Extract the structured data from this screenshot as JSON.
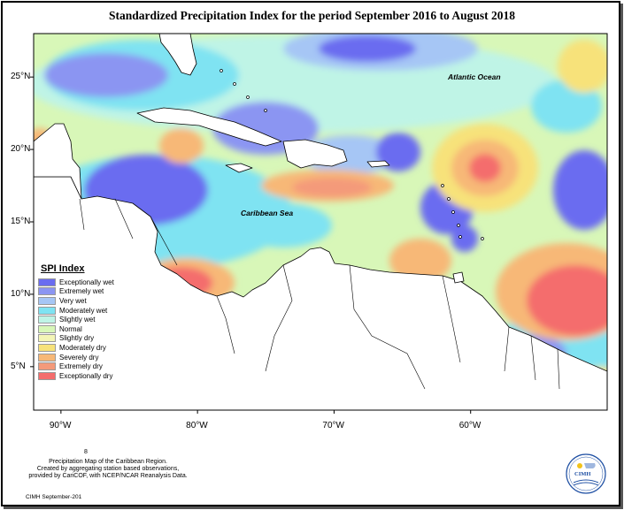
{
  "title": "Standardized Precipitation Index for the period September 2016 to August 2018",
  "map": {
    "lat_ticks": [
      {
        "label": "25°N",
        "lat": 25
      },
      {
        "label": "20°N",
        "lat": 20
      },
      {
        "label": "15°N",
        "lat": 15
      },
      {
        "label": "10°N",
        "lat": 10
      },
      {
        "label": "5°N",
        "lat": 5
      }
    ],
    "lon_ticks": [
      {
        "label": "90°W",
        "lon": -90
      },
      {
        "label": "80°W",
        "lon": -80
      },
      {
        "label": "70°W",
        "lon": -70
      },
      {
        "label": "60°W",
        "lon": -60
      }
    ],
    "extent": {
      "lon_min": -92,
      "lon_max": -50,
      "lat_min": 2,
      "lat_max": 28
    },
    "ocean_labels": {
      "atlantic": "Atlantic Ocean",
      "caribbean": "Caribbean Sea"
    }
  },
  "legend": {
    "title": "SPI Index",
    "items": [
      {
        "label": "Exceptionally wet",
        "color": "#6a6cf0"
      },
      {
        "label": "Extremely wet",
        "color": "#8b95f2"
      },
      {
        "label": "Very wet",
        "color": "#a6c6f5"
      },
      {
        "label": "Moderately wet",
        "color": "#7fe3f2"
      },
      {
        "label": "Slightly wet",
        "color": "#bff4e6"
      },
      {
        "label": "Normal",
        "color": "#d8f7b8"
      },
      {
        "label": "Slightly dry",
        "color": "#f3f5b6"
      },
      {
        "label": "Moderately dry",
        "color": "#f7e27a"
      },
      {
        "label": "Severely dry",
        "color": "#f7b877"
      },
      {
        "label": "Extremely dry",
        "color": "#f49a7a"
      },
      {
        "label": "Exceptionally dry",
        "color": "#f46d6d"
      }
    ]
  },
  "caption": {
    "lines": [
      "Precipitation Map of the Caribbean Region.",
      "Created by aggregating station based observations,",
      "provided by CariCOF, with NCEP/NCAR Reanalysis Data."
    ],
    "small_mark": "8",
    "credit": "CIMH September-201"
  },
  "logo": {
    "text": "CIMH"
  }
}
